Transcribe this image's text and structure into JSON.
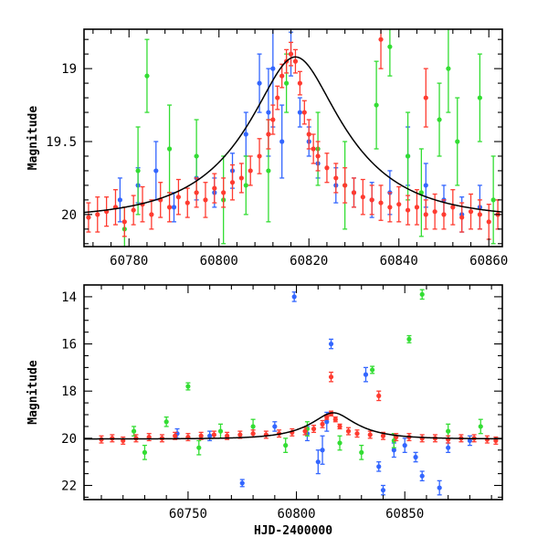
{
  "chart_data": [
    {
      "type": "scatter",
      "xlabel": "",
      "ylabel": "Magnitude",
      "xlim": [
        60770,
        60863
      ],
      "ylim": [
        20.22,
        18.73
      ],
      "y_inverted": true,
      "xticks": [
        60780,
        60800,
        60820,
        60840,
        60860
      ],
      "xtick_labels": [
        "60780",
        "60800",
        "60820",
        "60840",
        "60860"
      ],
      "yticks": [
        19,
        19.5,
        20
      ],
      "ytick_labels": [
        "19",
        "19.5",
        "20"
      ],
      "grid": false,
      "series": [
        {
          "color": "#3366ff",
          "points": [
            [
              60778,
              19.9,
              0.15
            ],
            [
              60782,
              19.8,
              0.12
            ],
            [
              60786,
              19.7,
              0.2
            ],
            [
              60790,
              19.95,
              0.1
            ],
            [
              60795,
              19.75,
              0.15
            ],
            [
              60799,
              19.85,
              0.1
            ],
            [
              60803,
              19.7,
              0.12
            ],
            [
              60806,
              19.45,
              0.15
            ],
            [
              60809,
              19.1,
              0.2
            ],
            [
              60811,
              19.3,
              0.3
            ],
            [
              60812,
              19.0,
              0.4
            ],
            [
              60814,
              19.5,
              0.25
            ],
            [
              60816,
              18.9,
              0.15
            ],
            [
              60818,
              19.3,
              0.1
            ],
            [
              60820,
              19.5,
              0.1
            ],
            [
              60822,
              19.65,
              0.1
            ],
            [
              60826,
              19.8,
              0.12
            ],
            [
              60830,
              19.85,
              0.1
            ],
            [
              60834,
              19.9,
              0.12
            ],
            [
              60838,
              19.85,
              0.15
            ],
            [
              60842,
              19.6,
              0.2
            ],
            [
              60846,
              19.8,
              0.15
            ],
            [
              60850,
              19.9,
              0.1
            ],
            [
              60854,
              20.0,
              0.12
            ],
            [
              60858,
              19.95,
              0.15
            ]
          ]
        },
        {
          "color": "#33dd33",
          "points": [
            [
              60779,
              20.1,
              0.15
            ],
            [
              60782,
              19.7,
              0.3
            ],
            [
              60784,
              19.05,
              0.25
            ],
            [
              60789,
              19.55,
              0.3
            ],
            [
              60795,
              19.6,
              0.25
            ],
            [
              60801,
              19.9,
              0.3
            ],
            [
              60806,
              19.8,
              0.2
            ],
            [
              60811,
              19.7,
              0.35
            ],
            [
              60815,
              19.1,
              0.2
            ],
            [
              60822,
              19.55,
              0.25
            ],
            [
              60828,
              19.8,
              0.3
            ],
            [
              60835,
              19.25,
              0.3
            ],
            [
              60838,
              18.85,
              0.2
            ],
            [
              60842,
              19.6,
              0.3
            ],
            [
              60845,
              19.85,
              0.3
            ],
            [
              60849,
              19.35,
              0.25
            ],
            [
              60851,
              19.0,
              0.3
            ],
            [
              60853,
              19.5,
              0.3
            ],
            [
              60858,
              19.2,
              0.3
            ],
            [
              60861,
              19.9,
              0.3
            ]
          ]
        },
        {
          "color": "#ff3b30",
          "points": [
            [
              60771,
              20.02,
              0.1
            ],
            [
              60773,
              20.0,
              0.12
            ],
            [
              60775,
              19.98,
              0.1
            ],
            [
              60777,
              19.95,
              0.12
            ],
            [
              60779,
              20.05,
              0.1
            ],
            [
              60781,
              19.97,
              0.1
            ],
            [
              60783,
              19.93,
              0.12
            ],
            [
              60785,
              20.0,
              0.1
            ],
            [
              60787,
              19.9,
              0.12
            ],
            [
              60789,
              19.95,
              0.1
            ],
            [
              60791,
              19.88,
              0.12
            ],
            [
              60793,
              19.92,
              0.1
            ],
            [
              60795,
              19.85,
              0.1
            ],
            [
              60797,
              19.9,
              0.12
            ],
            [
              60799,
              19.82,
              0.1
            ],
            [
              60801,
              19.85,
              0.1
            ],
            [
              60803,
              19.78,
              0.12
            ],
            [
              60805,
              19.75,
              0.1
            ],
            [
              60807,
              19.7,
              0.1
            ],
            [
              60809,
              19.6,
              0.12
            ],
            [
              60811,
              19.45,
              0.1
            ],
            [
              60812,
              19.35,
              0.1
            ],
            [
              60813,
              19.2,
              0.08
            ],
            [
              60814,
              19.05,
              0.08
            ],
            [
              60815,
              18.95,
              0.08
            ],
            [
              60816,
              18.9,
              0.08
            ],
            [
              60817,
              18.95,
              0.08
            ],
            [
              60818,
              19.1,
              0.08
            ],
            [
              60819,
              19.3,
              0.08
            ],
            [
              60820,
              19.45,
              0.1
            ],
            [
              60821,
              19.55,
              0.1
            ],
            [
              60822,
              19.6,
              0.1
            ],
            [
              60824,
              19.68,
              0.1
            ],
            [
              60826,
              19.75,
              0.1
            ],
            [
              60828,
              19.8,
              0.12
            ],
            [
              60830,
              19.85,
              0.1
            ],
            [
              60832,
              19.88,
              0.12
            ],
            [
              60834,
              19.9,
              0.1
            ],
            [
              60836,
              19.92,
              0.12
            ],
            [
              60838,
              19.95,
              0.1
            ],
            [
              60840,
              19.93,
              0.12
            ],
            [
              60842,
              19.97,
              0.1
            ],
            [
              60844,
              19.95,
              0.12
            ],
            [
              60846,
              20.0,
              0.1
            ],
            [
              60848,
              19.98,
              0.12
            ],
            [
              60850,
              20.0,
              0.1
            ],
            [
              60852,
              19.95,
              0.12
            ],
            [
              60854,
              20.02,
              0.1
            ],
            [
              60856,
              19.98,
              0.12
            ],
            [
              60858,
              20.0,
              0.1
            ],
            [
              60860,
              20.05,
              0.12
            ],
            [
              60862,
              20.0,
              0.1
            ],
            [
              60836,
              18.8,
              0.2
            ],
            [
              60846,
              19.2,
              0.2
            ]
          ]
        }
      ],
      "model_curve": {
        "color": "#000000",
        "baseline": 20.03,
        "peak_x": 60817,
        "peak_y": 18.92,
        "width": 3.5
      }
    },
    {
      "type": "scatter",
      "xlabel": "HJD-2400000",
      "ylabel": "Magnitude",
      "xlim": [
        60702,
        60895
      ],
      "ylim": [
        22.6,
        13.5
      ],
      "y_inverted": true,
      "xticks": [
        60750,
        60800,
        60850
      ],
      "xtick_labels": [
        "60750",
        "60800",
        "60850"
      ],
      "yticks": [
        14,
        16,
        18,
        20,
        22
      ],
      "ytick_labels": [
        "14",
        "16",
        "18",
        "20",
        "22"
      ],
      "grid": false,
      "series": [
        {
          "color": "#3366ff",
          "points": [
            [
              60745,
              19.8,
              0.2
            ],
            [
              60760,
              19.9,
              0.2
            ],
            [
              60775,
              21.9,
              0.15
            ],
            [
              60790,
              19.5,
              0.2
            ],
            [
              60799,
              14.0,
              0.2
            ],
            [
              60805,
              19.8,
              0.3
            ],
            [
              60810,
              21.0,
              0.5
            ],
            [
              60812,
              20.5,
              0.6
            ],
            [
              60814,
              19.3,
              0.4
            ],
            [
              60816,
              16.0,
              0.2
            ],
            [
              60832,
              17.3,
              0.3
            ],
            [
              60838,
              21.2,
              0.2
            ],
            [
              60840,
              22.2,
              0.2
            ],
            [
              60845,
              20.5,
              0.3
            ],
            [
              60850,
              20.3,
              0.3
            ],
            [
              60855,
              20.8,
              0.2
            ],
            [
              60858,
              21.6,
              0.2
            ],
            [
              60866,
              22.1,
              0.3
            ],
            [
              60870,
              20.4,
              0.2
            ],
            [
              60880,
              20.1,
              0.2
            ]
          ]
        },
        {
          "color": "#33dd33",
          "points": [
            [
              60725,
              19.7,
              0.2
            ],
            [
              60730,
              20.6,
              0.3
            ],
            [
              60740,
              19.3,
              0.2
            ],
            [
              60750,
              17.8,
              0.15
            ],
            [
              60755,
              20.4,
              0.3
            ],
            [
              60765,
              19.7,
              0.3
            ],
            [
              60780,
              19.5,
              0.3
            ],
            [
              60795,
              20.3,
              0.3
            ],
            [
              60805,
              19.6,
              0.3
            ],
            [
              60820,
              20.2,
              0.3
            ],
            [
              60830,
              20.6,
              0.3
            ],
            [
              60835,
              17.1,
              0.15
            ],
            [
              60845,
              20.1,
              0.3
            ],
            [
              60852,
              15.8,
              0.15
            ],
            [
              60858,
              13.9,
              0.2
            ],
            [
              60870,
              19.7,
              0.3
            ],
            [
              60885,
              19.5,
              0.3
            ]
          ]
        },
        {
          "color": "#ff3b30",
          "points": [
            [
              60710,
              20.05,
              0.15
            ],
            [
              60715,
              20.0,
              0.15
            ],
            [
              60720,
              20.1,
              0.15
            ],
            [
              60726,
              20.0,
              0.15
            ],
            [
              60732,
              19.95,
              0.15
            ],
            [
              60738,
              20.0,
              0.15
            ],
            [
              60744,
              19.9,
              0.15
            ],
            [
              60750,
              19.95,
              0.15
            ],
            [
              60756,
              19.9,
              0.15
            ],
            [
              60762,
              19.85,
              0.15
            ],
            [
              60768,
              19.9,
              0.15
            ],
            [
              60774,
              19.85,
              0.15
            ],
            [
              60780,
              19.8,
              0.15
            ],
            [
              60786,
              19.85,
              0.15
            ],
            [
              60792,
              19.8,
              0.15
            ],
            [
              60798,
              19.75,
              0.15
            ],
            [
              60804,
              19.7,
              0.15
            ],
            [
              60808,
              19.6,
              0.15
            ],
            [
              60812,
              19.4,
              0.15
            ],
            [
              60814,
              19.1,
              0.1
            ],
            [
              60816,
              18.95,
              0.1
            ],
            [
              60818,
              19.2,
              0.1
            ],
            [
              60820,
              19.5,
              0.1
            ],
            [
              60824,
              19.7,
              0.15
            ],
            [
              60828,
              19.8,
              0.15
            ],
            [
              60834,
              19.85,
              0.15
            ],
            [
              60840,
              19.9,
              0.15
            ],
            [
              60846,
              19.95,
              0.15
            ],
            [
              60852,
              19.95,
              0.15
            ],
            [
              60858,
              20.0,
              0.15
            ],
            [
              60864,
              20.0,
              0.15
            ],
            [
              60870,
              20.05,
              0.15
            ],
            [
              60876,
              20.0,
              0.15
            ],
            [
              60882,
              20.0,
              0.15
            ],
            [
              60888,
              20.05,
              0.15
            ],
            [
              60892,
              20.1,
              0.15
            ],
            [
              60816,
              17.4,
              0.2
            ],
            [
              60838,
              18.2,
              0.2
            ]
          ]
        }
      ],
      "model_curve": {
        "color": "#000000",
        "baseline": 20.03,
        "peak_x": 60817,
        "peak_y": 18.92,
        "width": 3.5
      }
    }
  ]
}
